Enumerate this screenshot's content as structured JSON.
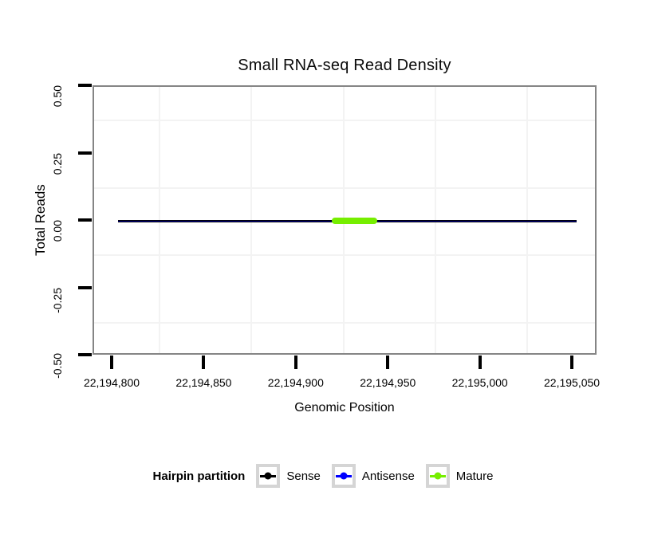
{
  "title": "Small RNA-seq Read Density",
  "chart_data": {
    "type": "line",
    "title": "Small RNA-seq Read Density",
    "xlabel": "Genomic Position",
    "ylabel": "Total Reads",
    "xlim": [
      22194789.6,
      22195063.4
    ],
    "ylim": [
      -0.5,
      0.5
    ],
    "x_ticks": [
      {
        "value": 22194800,
        "label": "22,194,800"
      },
      {
        "value": 22194850,
        "label": "22,194,850"
      },
      {
        "value": 22194900,
        "label": "22,194,900"
      },
      {
        "value": 22194950,
        "label": "22,194,950"
      },
      {
        "value": 22195000,
        "label": "22,195,000"
      },
      {
        "value": 22195050,
        "label": "22,195,050"
      }
    ],
    "y_ticks": [
      {
        "value": 0.5,
        "label": "0.50"
      },
      {
        "value": 0.25,
        "label": "0.25"
      },
      {
        "value": 0.0,
        "label": "0.00"
      },
      {
        "value": -0.25,
        "label": "-0.25"
      },
      {
        "value": -0.5,
        "label": "-0.50"
      }
    ],
    "grid": "minor-only",
    "panel_border_color": "#858585",
    "series": [
      {
        "name": "Sense",
        "color": "#000000",
        "x": [
          22194803,
          22195052
        ],
        "y": [
          0,
          0
        ],
        "width": 3,
        "cap": "butt",
        "opacity": 1
      },
      {
        "name": "Antisense",
        "color": "#0000FF",
        "x": [
          22194803,
          22195052
        ],
        "y": [
          0,
          0
        ],
        "width": 1,
        "cap": "butt",
        "opacity": 0.55
      },
      {
        "name": "Mature",
        "color": "#76EE00",
        "x": [
          22194919,
          22194944
        ],
        "y": [
          0,
          0
        ],
        "width": 8,
        "cap": "round",
        "opacity": 1
      }
    ],
    "legend": {
      "title": "Hairpin partition",
      "position": "bottom",
      "entries": [
        {
          "label": "Sense",
          "color": "#000000"
        },
        {
          "label": "Antisense",
          "color": "#0000FF"
        },
        {
          "label": "Mature",
          "color": "#76EE00"
        }
      ]
    }
  }
}
